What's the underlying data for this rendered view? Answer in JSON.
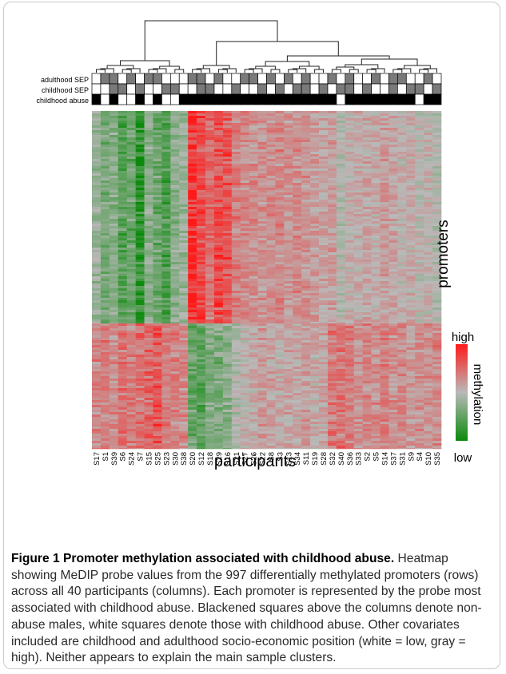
{
  "figure": {
    "covariate_labels": [
      "adulthood SEP",
      "childhood SEP",
      "childhood abuse"
    ],
    "y_axis_label": "promoters",
    "x_axis_label": "participants",
    "legend": {
      "high_label": "high",
      "low_label": "low",
      "title": "methylation"
    },
    "colors": {
      "high": "#ff1a1a",
      "mid": "#b9b9b9",
      "low": "#0a8a0a",
      "black": "#000000",
      "gray": "#7a7a7a",
      "white": "#ffffff"
    },
    "participants": [
      "S17",
      "S1",
      "S39",
      "S6",
      "S24",
      "S7",
      "S15",
      "S25",
      "S23",
      "S30",
      "S38",
      "S20",
      "S12",
      "S18",
      "S29",
      "S16",
      "S21",
      "S27",
      "S26",
      "S22",
      "S8",
      "S3",
      "S13",
      "S34",
      "S11",
      "S19",
      "S28",
      "S32",
      "S40",
      "S36",
      "S33",
      "S2",
      "S5",
      "S14",
      "S37",
      "S31",
      "S9",
      "S4",
      "S10",
      "S35"
    ],
    "covariates": {
      "adulthood_sep": [
        0,
        1,
        1,
        0,
        1,
        0,
        1,
        1,
        0,
        0,
        0,
        1,
        1,
        0,
        1,
        0,
        0,
        1,
        1,
        0,
        1,
        0,
        1,
        0,
        1,
        0,
        0,
        1,
        0,
        1,
        0,
        0,
        1,
        0,
        1,
        1,
        0,
        0,
        1,
        0
      ],
      "childhood_sep": [
        0,
        0,
        1,
        1,
        0,
        1,
        0,
        0,
        1,
        1,
        0,
        0,
        1,
        1,
        0,
        0,
        1,
        0,
        0,
        1,
        0,
        1,
        0,
        1,
        1,
        0,
        1,
        0,
        1,
        1,
        0,
        1,
        0,
        0,
        1,
        0,
        1,
        1,
        0,
        1
      ],
      "childhood_abuse": [
        1,
        0,
        1,
        0,
        0,
        1,
        0,
        1,
        0,
        0,
        1,
        1,
        1,
        1,
        1,
        1,
        1,
        1,
        1,
        1,
        1,
        1,
        1,
        1,
        1,
        1,
        1,
        1,
        0,
        1,
        1,
        1,
        1,
        1,
        1,
        1,
        1,
        0,
        1,
        1
      ]
    },
    "promoter_count": 997,
    "cluster_profiles": {
      "upper_block": [
        -0.2,
        -0.4,
        -0.3,
        -0.6,
        -0.5,
        -0.9,
        -0.3,
        -0.5,
        -0.7,
        -0.3,
        -0.2,
        1.0,
        0.8,
        0.5,
        0.75,
        0.7,
        0.4,
        0.35,
        0.3,
        0.25,
        0.3,
        0.35,
        0.25,
        0.3,
        0.25,
        0.2,
        0.15,
        0.2,
        -0.05,
        0.05,
        0.1,
        0.15,
        0.1,
        0.2,
        0.15,
        0.05,
        0.1,
        0.0,
        0.05,
        -0.05
      ],
      "lower_block": [
        0.35,
        0.4,
        0.3,
        0.45,
        0.4,
        0.5,
        0.55,
        0.7,
        0.45,
        0.4,
        0.35,
        -0.5,
        -0.6,
        -0.35,
        -0.4,
        -0.3,
        -0.1,
        0.05,
        0.1,
        0.2,
        0.15,
        0.1,
        0.15,
        0.1,
        0.2,
        0.1,
        0.15,
        0.45,
        0.5,
        0.4,
        0.3,
        0.35,
        0.3,
        0.4,
        0.3,
        0.35,
        0.25,
        0.3,
        0.3,
        0.35
      ]
    }
  },
  "caption": {
    "title": "Figure 1 Promoter methylation associated with childhood abuse.",
    "body": "Heatmap showing MeDIP probe values from the 997 differentially methylated promoters (rows) across all 40 participants (columns). Each promoter is represented by the probe most associated with childhood abuse. Blackened squares above the columns denote non-abuse males, white squares denote those with childhood abuse. Other covariates included are childhood and adulthood socio-economic position (white = low, gray = high). Neither appears to explain the main sample clusters."
  }
}
